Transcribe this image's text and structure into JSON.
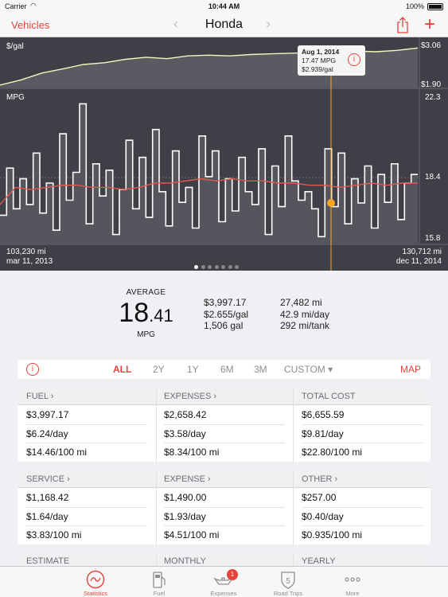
{
  "status_bar": {
    "carrier": "Carrier",
    "time": "10:44 AM",
    "battery": "100%"
  },
  "nav": {
    "back_label": "Vehicles",
    "title": "Honda"
  },
  "chart": {
    "price_label": "$/gal",
    "price_max": "$3.06",
    "price_min": "$1.90",
    "mpg_label": "MPG",
    "mpg_max": "22.3",
    "mpg_mid": "18.4",
    "mpg_min": "15.8",
    "start_odometer": "103,230 mi",
    "start_date": "mar 11, 2013",
    "end_odometer": "130,712 mi",
    "end_date": "dec 11, 2014",
    "tooltip": {
      "date": "Aug 1, 2014",
      "mpg": "17.47 MPG",
      "price": "$2.939/gal"
    },
    "page_count": 7,
    "page_active": 0
  },
  "chart_data": [
    {
      "type": "area",
      "ylabel": "$/gal",
      "ylim": [
        1.9,
        3.06
      ],
      "x": [
        0,
        5,
        10,
        15,
        20,
        25,
        30,
        35,
        40,
        45,
        50,
        55,
        60,
        65,
        70,
        75,
        80,
        85,
        90,
        95,
        100
      ],
      "values": [
        1.95,
        2.1,
        2.3,
        2.42,
        2.55,
        2.6,
        2.7,
        2.76,
        2.72,
        2.8,
        2.82,
        2.8,
        2.84,
        2.86,
        2.88,
        2.9,
        2.93,
        2.94,
        2.92,
        2.96,
        3.03
      ]
    },
    {
      "type": "line",
      "ylabel": "MPG",
      "ylim": [
        15.8,
        22.3
      ],
      "x_start": "mar 11, 2013",
      "x_end": "dec 11, 2014",
      "series": [
        {
          "values": [
            16.9,
            19.1,
            17.2,
            18.6,
            17.4,
            19.8,
            17.0,
            18.4,
            16.2,
            20.7,
            17.6,
            18.9,
            22.1,
            16.5,
            19.3,
            17.8,
            19.0,
            16.0,
            18.1,
            20.4,
            17.2,
            19.6,
            16.8,
            20.9,
            18.0,
            16.4,
            19.9,
            17.5,
            18.2,
            16.3,
            20.6,
            18.7,
            19.9,
            16.6,
            18.6,
            17.1,
            19.6,
            18.0,
            17.4,
            20.0,
            16.0,
            19.2,
            17.3,
            20.6,
            18.5,
            17.6,
            18.0,
            17.2,
            15.9,
            20.0,
            17.3,
            19.8,
            16.5,
            18.6,
            17.47,
            19.2,
            16.3,
            18.8,
            17.5,
            19.3,
            16.7,
            18.4,
            18.8
          ]
        },
        {
          "values": [
            17.4,
            18.2,
            18.1,
            18.2,
            18.3,
            18.3,
            18.2,
            18.2,
            18.1,
            18.2,
            18.4,
            18.4,
            18.5,
            18.6,
            18.5,
            18.6,
            18.5,
            18.5,
            18.4,
            18.4,
            18.3,
            18.3,
            18.2,
            18.3,
            18.4,
            18.3,
            18.4,
            18.4
          ]
        }
      ]
    }
  ],
  "average": {
    "label": "AVERAGE",
    "int": "18",
    "dec": ".41",
    "unit": "MPG"
  },
  "stats_left": [
    "$3,997.17",
    "$2.655/gal",
    "1,506 gal"
  ],
  "stats_right": [
    "27,482 mi",
    "42.9 mi/day",
    "292 mi/tank"
  ],
  "periods": {
    "items": [
      "ALL",
      "2Y",
      "1Y",
      "6M",
      "3M",
      "CUSTOM ▾"
    ],
    "active": "ALL",
    "map_label": "MAP"
  },
  "table1": {
    "columns": [
      {
        "header": "FUEL ›",
        "cells": [
          "$3,997.17",
          "$6.24/day",
          "$14.46/100 mi"
        ]
      },
      {
        "header": "EXPENSES ›",
        "cells": [
          "$2,658.42",
          "$3.58/day",
          "$8.34/100 mi"
        ]
      },
      {
        "header": "TOTAL COST",
        "cells": [
          "$6,655.59",
          "$9.81/day",
          "$22.80/100 mi"
        ]
      }
    ]
  },
  "table2": {
    "columns": [
      {
        "header": "SERVICE ›",
        "cells": [
          "$1,168.42",
          "$1.64/day",
          "$3.83/100 mi"
        ]
      },
      {
        "header": "EXPENSE ›",
        "cells": [
          "$1,490.00",
          "$1.93/day",
          "$4.51/100 mi"
        ]
      },
      {
        "header": "OTHER ›",
        "cells": [
          "$257.00",
          "$0.40/day",
          "$0.935/100 mi"
        ]
      }
    ]
  },
  "table3": {
    "columns": [
      {
        "header": "ESTIMATE"
      },
      {
        "header": "MONTHLY"
      },
      {
        "header": "YEARLY"
      }
    ]
  },
  "tabs": [
    {
      "label": "Statistics",
      "icon": "statistics-icon"
    },
    {
      "label": "Fuel",
      "icon": "fuel-pump-icon"
    },
    {
      "label": "Expenses",
      "icon": "oil-can-icon",
      "badge": "1"
    },
    {
      "label": "Road Trips",
      "icon": "road-sign-icon"
    },
    {
      "label": "More",
      "icon": "more-icon"
    }
  ],
  "colors": {
    "accent": "#e8413a",
    "chart_bg": "#3f3f47",
    "price_line": "#f3f6c0",
    "trend_line": "#e8574f",
    "marker": "#f5a623"
  }
}
